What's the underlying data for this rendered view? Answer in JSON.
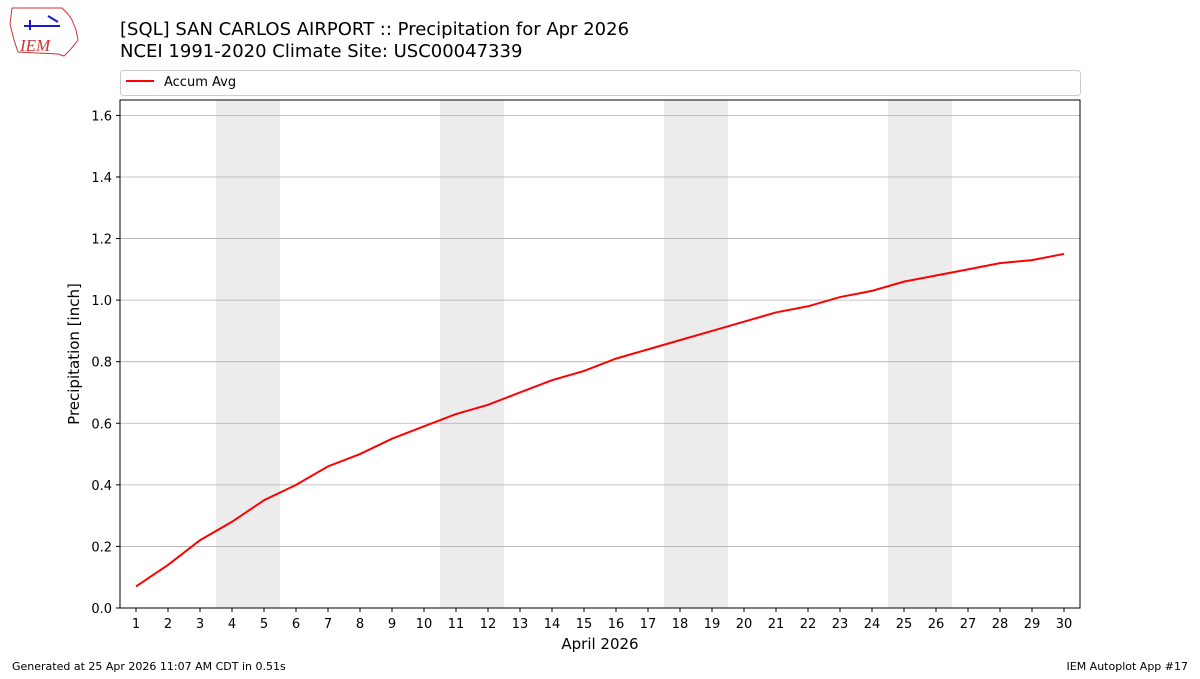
{
  "header": {
    "logo": "IEM"
  },
  "chart_data": {
    "type": "line",
    "title": "[SQL] SAN CARLOS AIRPORT :: Precipitation for Apr 2026",
    "subtitle": "NCEI 1991-2020 Climate Site: USC00047339",
    "x_label": "April 2026",
    "y_label": "Precipitation [inch]",
    "x": [
      1,
      2,
      3,
      4,
      5,
      6,
      7,
      8,
      9,
      10,
      11,
      12,
      13,
      14,
      15,
      16,
      17,
      18,
      19,
      20,
      21,
      22,
      23,
      24,
      25,
      26,
      27,
      28,
      29,
      30
    ],
    "series": [
      {
        "name": "Accum Avg",
        "color": "#ff0000",
        "values": [
          0.07,
          0.14,
          0.22,
          0.28,
          0.35,
          0.4,
          0.46,
          0.5,
          0.55,
          0.59,
          0.63,
          0.66,
          0.7,
          0.74,
          0.77,
          0.81,
          0.84,
          0.87,
          0.9,
          0.93,
          0.96,
          0.98,
          1.01,
          1.03,
          1.06,
          1.08,
          1.1,
          1.12,
          1.13,
          1.15
        ]
      }
    ],
    "xlim": [
      0.5,
      30.5
    ],
    "xticks": [
      1,
      2,
      3,
      4,
      5,
      6,
      7,
      8,
      9,
      10,
      11,
      12,
      13,
      14,
      15,
      16,
      17,
      18,
      19,
      20,
      21,
      22,
      23,
      24,
      25,
      26,
      27,
      28,
      29,
      30
    ],
    "ylim": [
      0,
      1.65
    ],
    "yticks": [
      {
        "value": 0,
        "label": "0.0"
      },
      0.2,
      0.4,
      0.6,
      0.8,
      {
        "value": 1,
        "label": "1.0"
      },
      1.2,
      1.4,
      1.6
    ],
    "grid": true,
    "legend": "top"
  },
  "footer": {
    "left": "Generated at 25 Apr 2026 11:07 AM CDT in 0.51s",
    "right": "IEM Autoplot App #17"
  }
}
